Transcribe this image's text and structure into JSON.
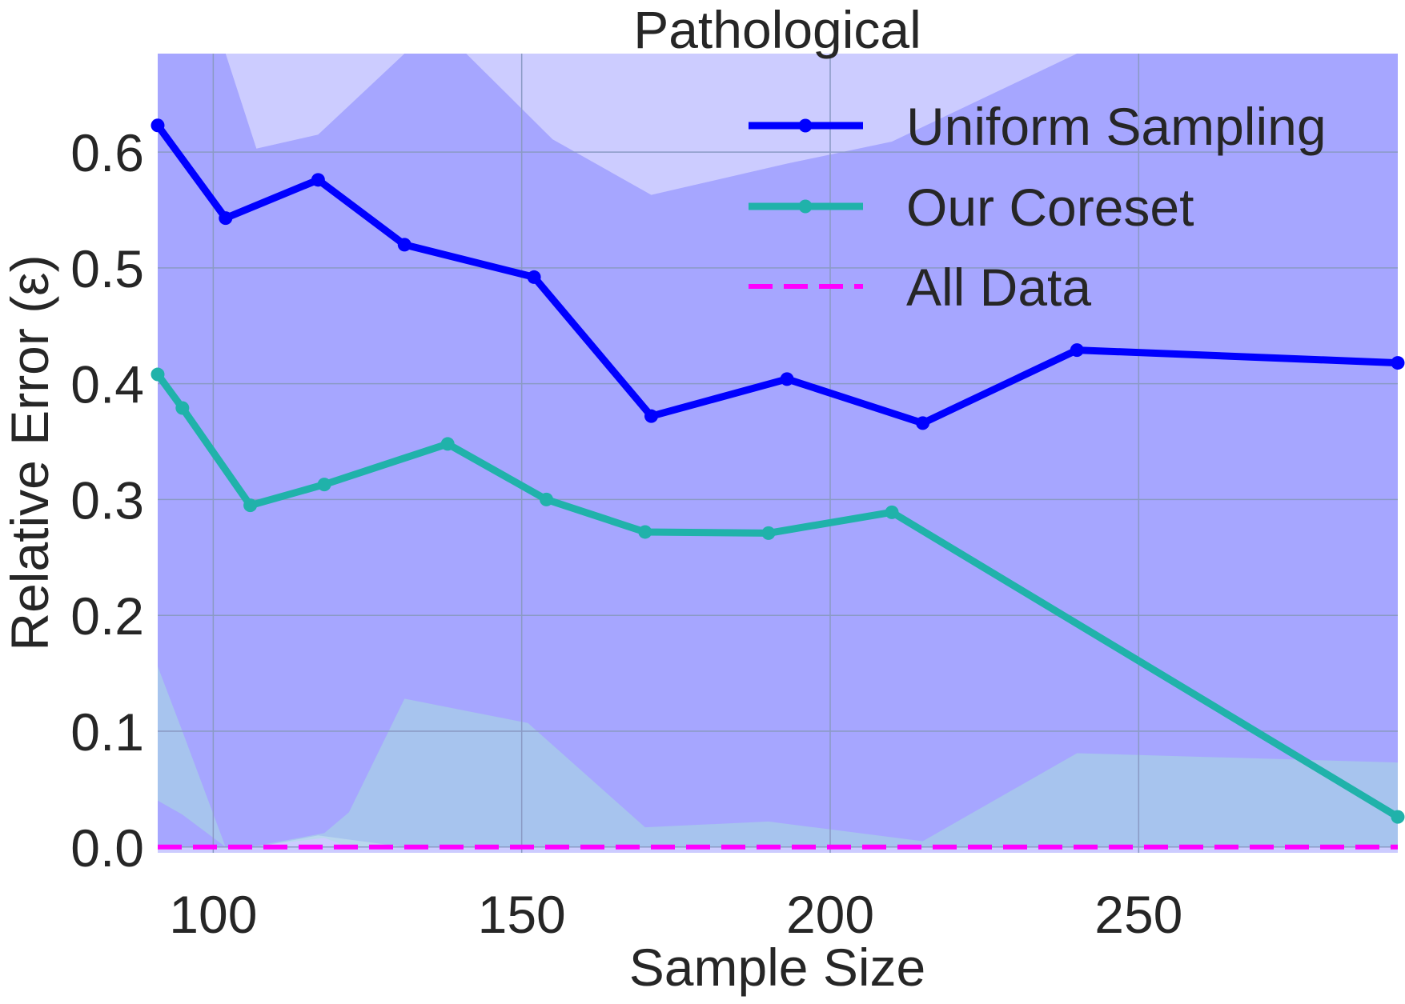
{
  "chart_data": {
    "type": "line",
    "title": "Pathological",
    "xlabel": "Sample Size",
    "ylabel": "Relative Error (ε)",
    "xlim": [
      91,
      292
    ],
    "ylim": [
      -0.005,
      0.685
    ],
    "xticks": [
      100,
      150,
      200,
      250
    ],
    "yticks": [
      0.0,
      0.1,
      0.2,
      0.3,
      0.4,
      0.5,
      0.6
    ],
    "ytick_labels": [
      "0.0",
      "0.1",
      "0.2",
      "0.3",
      "0.4",
      "0.5",
      "0.6"
    ],
    "xtick_labels": [
      "100",
      "150",
      "200",
      "250"
    ],
    "grid": true,
    "legend_position": "top-right",
    "series": [
      {
        "name": "Uniform Sampling",
        "color": "#0000ff",
        "band_color": "#8080ff",
        "x": [
          91,
          102,
          117,
          131,
          152,
          171,
          193,
          215,
          240,
          292
        ],
        "y": [
          0.623,
          0.543,
          0.576,
          0.52,
          0.492,
          0.372,
          0.404,
          0.366,
          0.429,
          0.418
        ],
        "band": {
          "x": [
            91,
            102,
            107,
            117,
            131,
            141,
            155,
            171,
            193,
            210,
            240,
            292
          ],
          "lower": [
            0.0,
            0.0,
            0.0,
            0.01,
            0.0,
            0.0,
            0.0,
            0.0,
            0.0,
            0.0,
            0.0,
            0.0
          ],
          "upper": [
            0.685,
            0.685,
            0.603,
            0.615,
            0.685,
            0.685,
            0.611,
            0.563,
            0.59,
            0.609,
            0.685,
            0.685
          ]
        }
      },
      {
        "name": "Our Coreset",
        "color": "#20b2aa",
        "band_color": "#a8e2dd",
        "x": [
          91,
          95,
          106,
          118,
          138,
          154,
          170,
          190,
          210,
          292
        ],
        "y": [
          0.408,
          0.379,
          0.295,
          0.313,
          0.348,
          0.3,
          0.272,
          0.271,
          0.289,
          0.026
        ],
        "band": {
          "x": [
            91,
            95,
            102,
            106,
            118,
            122,
            131,
            151,
            170,
            190,
            215,
            240,
            292
          ],
          "lower": [
            0.04,
            0.028,
            0.0,
            0.0,
            0.008,
            0.0,
            0.0,
            0.0,
            0.0,
            0.0,
            0.0,
            0.0,
            0.0
          ],
          "upper": [
            0.156,
            0.1,
            0.0,
            0.0,
            0.012,
            0.03,
            0.128,
            0.107,
            0.017,
            0.022,
            0.005,
            0.081,
            0.073
          ]
        }
      },
      {
        "name": "All Data",
        "color": "#ff00ff",
        "dashed": true,
        "x": [
          91,
          292
        ],
        "y": [
          0.0,
          0.0
        ]
      }
    ]
  }
}
